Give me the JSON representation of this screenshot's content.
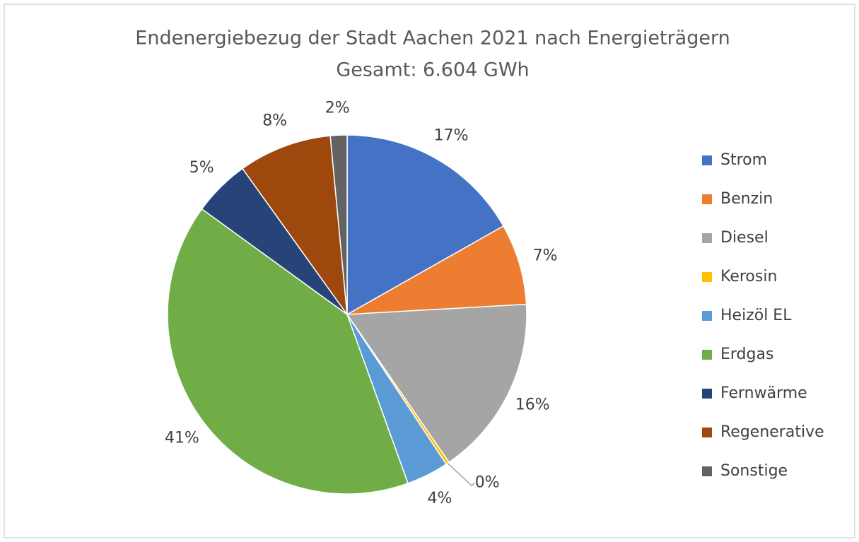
{
  "chart_data": {
    "type": "pie",
    "title": "Endenergiebezug  der Stadt Aachen 2021 nach Energieträgern",
    "subtitle": "Gesamt: 6.604 GWh",
    "categories": [
      "Strom",
      "Benzin",
      "Diesel",
      "Kerosin",
      "Heizöl EL",
      "Erdgas",
      "Fernwärme",
      "Regenerative",
      "Sonstige"
    ],
    "values": [
      16.8,
      7.3,
      16.3,
      0.3,
      3.8,
      40.5,
      5.1,
      8.4,
      1.5
    ],
    "value_labels": [
      "17%",
      "7%",
      "16%",
      "0%",
      "4%",
      "41%",
      "5%",
      "8%",
      "2%"
    ],
    "colors": [
      "#4472c4",
      "#ed7d31",
      "#a5a5a5",
      "#ffc000",
      "#5b9bd5",
      "#70ad47",
      "#264478",
      "#9e480e",
      "#636363"
    ],
    "legend": "right"
  }
}
